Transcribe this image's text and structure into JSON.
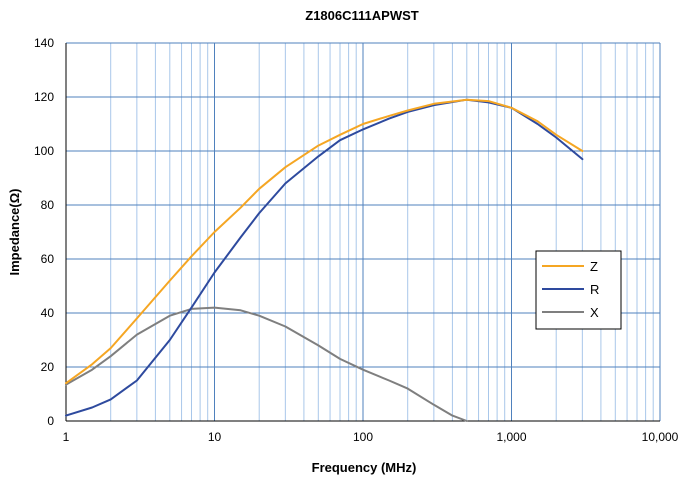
{
  "chart_data": {
    "type": "line",
    "title": "Z1806C111APWST",
    "xlabel": "Frequency (MHz)",
    "ylabel": "Impedance(Ω)",
    "xscale": "log",
    "xlim": [
      1,
      10000
    ],
    "ylim": [
      0,
      140
    ],
    "xticks": [
      1,
      10,
      100,
      1000,
      10000
    ],
    "xtick_labels": [
      "1",
      "10",
      "100",
      "1,000",
      "10,000"
    ],
    "yticks": [
      0,
      20,
      40,
      60,
      80,
      100,
      120,
      140
    ],
    "ytick_labels": [
      "0",
      "20",
      "40",
      "60",
      "80",
      "100",
      "120",
      "140"
    ],
    "grid": true,
    "legend_position": "right",
    "series": [
      {
        "name": "Z",
        "color": "#F5A623",
        "x": [
          1,
          1.5,
          2,
          3,
          5,
          7,
          10,
          15,
          20,
          30,
          50,
          70,
          100,
          150,
          200,
          300,
          500,
          700,
          1000,
          1500,
          2000,
          3000
        ],
        "y": [
          14,
          21,
          27,
          38,
          52,
          61,
          70,
          79,
          86,
          94,
          102,
          106,
          110,
          113,
          115,
          117.5,
          119,
          118.5,
          116,
          111,
          106,
          100
        ]
      },
      {
        "name": "R",
        "color": "#2E4A9E",
        "x": [
          1,
          1.5,
          2,
          3,
          5,
          7,
          10,
          15,
          20,
          30,
          50,
          70,
          100,
          150,
          200,
          300,
          500,
          700,
          1000,
          1500,
          2000,
          3000
        ],
        "y": [
          2,
          5,
          8,
          15,
          30,
          42,
          55,
          68,
          77,
          88,
          98,
          104,
          108,
          112,
          114.5,
          117,
          119,
          118,
          116,
          110,
          105,
          97
        ]
      },
      {
        "name": "X",
        "color": "#7F7F7F",
        "x": [
          1,
          1.5,
          2,
          3,
          5,
          7,
          10,
          15,
          20,
          30,
          50,
          70,
          100,
          150,
          200,
          300,
          400,
          500
        ],
        "y": [
          13.5,
          19,
          24,
          32,
          39,
          41.5,
          42,
          41,
          39,
          35,
          28,
          23,
          19,
          15,
          12,
          6,
          2,
          0
        ]
      }
    ]
  }
}
